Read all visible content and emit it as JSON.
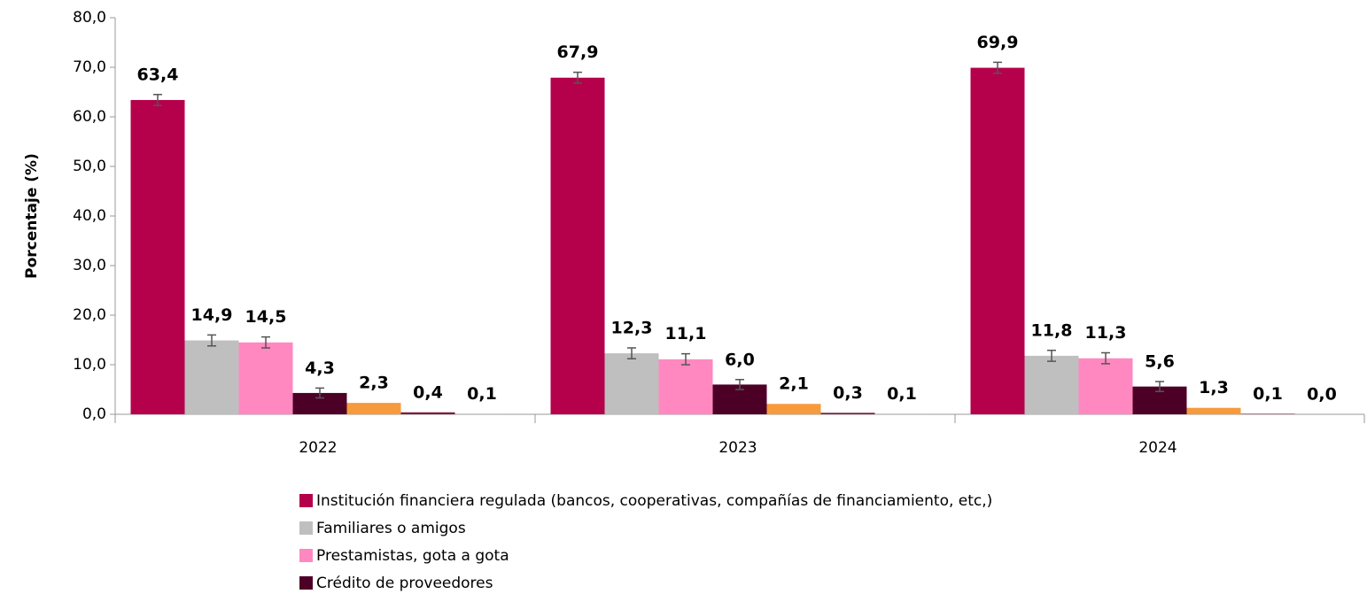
{
  "chart_data": {
    "type": "bar",
    "y_label": "Porcentaje (%)",
    "categories": [
      "2022",
      "2023",
      "2024"
    ],
    "series": [
      {
        "name": "Institución financiera regulada (bancos, cooperativas, compañías de financiamiento, etc,)",
        "color": "#b5004b",
        "values": [
          63.4,
          67.9,
          69.9
        ],
        "value_labels": [
          "63,4",
          "67,9",
          "69,9"
        ],
        "errors": [
          1.1,
          1.1,
          1.1
        ]
      },
      {
        "name": "Familiares  o amigos",
        "color": "#bfbfbf",
        "values": [
          14.9,
          12.3,
          11.8
        ],
        "value_labels": [
          "14,9",
          "12,3",
          "11,8"
        ],
        "errors": [
          1.1,
          1.1,
          1.1
        ]
      },
      {
        "name": "Prestamistas, gota a gota",
        "color": "#ff88c0",
        "values": [
          14.5,
          11.1,
          11.3
        ],
        "value_labels": [
          "14,5",
          "11,1",
          "11,3"
        ],
        "errors": [
          1.1,
          1.1,
          1.1
        ]
      },
      {
        "name": "Crédito de proveedores",
        "color": "#4d0026",
        "values": [
          4.3,
          6.0,
          5.6
        ],
        "value_labels": [
          "4,3",
          "6,0",
          "5,6"
        ],
        "errors": [
          1.0,
          1.0,
          1.0
        ]
      },
      {
        "color": "#f79a3c",
        "values": [
          2.3,
          2.1,
          1.3
        ],
        "value_labels": [
          "2,3",
          "2,1",
          "1,3"
        ]
      },
      {
        "color": "#7a1f3c",
        "values": [
          0.4,
          0.3,
          0.1
        ],
        "value_labels": [
          "0,4",
          "0,3",
          "0,1"
        ]
      },
      {
        "color": "#a6a6a6",
        "values": [
          0.1,
          0.1,
          0.0
        ],
        "value_labels": [
          "0,1",
          "0,1",
          "0,0"
        ]
      }
    ],
    "ylim": [
      0,
      80
    ],
    "yticks": [
      {
        "value": 0,
        "label": "0,0"
      },
      {
        "value": 10,
        "label": "10,0"
      },
      {
        "value": 20,
        "label": "20,0"
      },
      {
        "value": 30,
        "label": "30,0"
      },
      {
        "value": 40,
        "label": "40,0"
      },
      {
        "value": 50,
        "label": "50,0"
      },
      {
        "value": 60,
        "label": "60,0"
      },
      {
        "value": 70,
        "label": "70,0"
      },
      {
        "value": 80,
        "label": "80,0"
      }
    ],
    "legend": "bottom"
  }
}
